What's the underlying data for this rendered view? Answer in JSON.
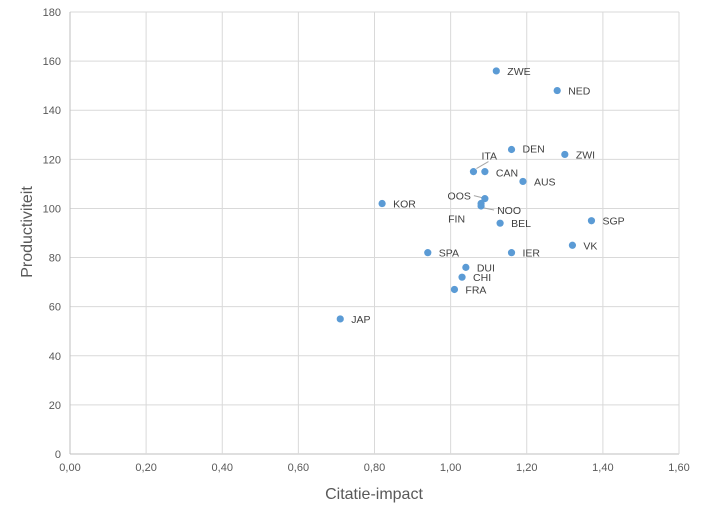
{
  "chart_data": {
    "type": "scatter",
    "xlabel": "Citatie-impact",
    "ylabel": "Productiviteit",
    "xlim": [
      0,
      1.6
    ],
    "ylim": [
      0,
      180
    ],
    "xticks": [
      0,
      0.2,
      0.4,
      0.6,
      0.8,
      1.0,
      1.2,
      1.4,
      1.6
    ],
    "yticks": [
      0,
      20,
      40,
      60,
      80,
      100,
      120,
      140,
      160,
      180
    ],
    "xtick_labels": [
      "0,00",
      "0,20",
      "0,40",
      "0,60",
      "0,80",
      "1,00",
      "1,20",
      "1,40",
      "1,60"
    ],
    "ytick_labels": [
      "0",
      "20",
      "40",
      "60",
      "80",
      "100",
      "120",
      "140",
      "160",
      "180"
    ],
    "grid": true,
    "marker_color": "#5b9bd5",
    "points": [
      {
        "label": "ZWE",
        "x": 1.12,
        "y": 156
      },
      {
        "label": "NED",
        "x": 1.28,
        "y": 148
      },
      {
        "label": "DEN",
        "x": 1.16,
        "y": 124
      },
      {
        "label": "ZWI",
        "x": 1.3,
        "y": 122
      },
      {
        "label": "ITA",
        "x": 1.06,
        "y": 115
      },
      {
        "label": "CAN",
        "x": 1.09,
        "y": 115
      },
      {
        "label": "AUS",
        "x": 1.19,
        "y": 111
      },
      {
        "label": "OOS",
        "x": 1.09,
        "y": 104
      },
      {
        "label": "NOO",
        "x": 1.08,
        "y": 101
      },
      {
        "label": "KOR",
        "x": 0.82,
        "y": 102
      },
      {
        "label": "FIN",
        "x": 1.08,
        "y": 102
      },
      {
        "label": "BEL",
        "x": 1.13,
        "y": 94
      },
      {
        "label": "SGP",
        "x": 1.37,
        "y": 95
      },
      {
        "label": "VK",
        "x": 1.32,
        "y": 85
      },
      {
        "label": "SPA",
        "x": 0.94,
        "y": 82
      },
      {
        "label": "IER",
        "x": 1.16,
        "y": 82
      },
      {
        "label": "DUI",
        "x": 1.04,
        "y": 76
      },
      {
        "label": "CHI",
        "x": 1.03,
        "y": 72
      },
      {
        "label": "FRA",
        "x": 1.01,
        "y": 67
      },
      {
        "label": "JAP",
        "x": 0.71,
        "y": 55
      }
    ]
  }
}
